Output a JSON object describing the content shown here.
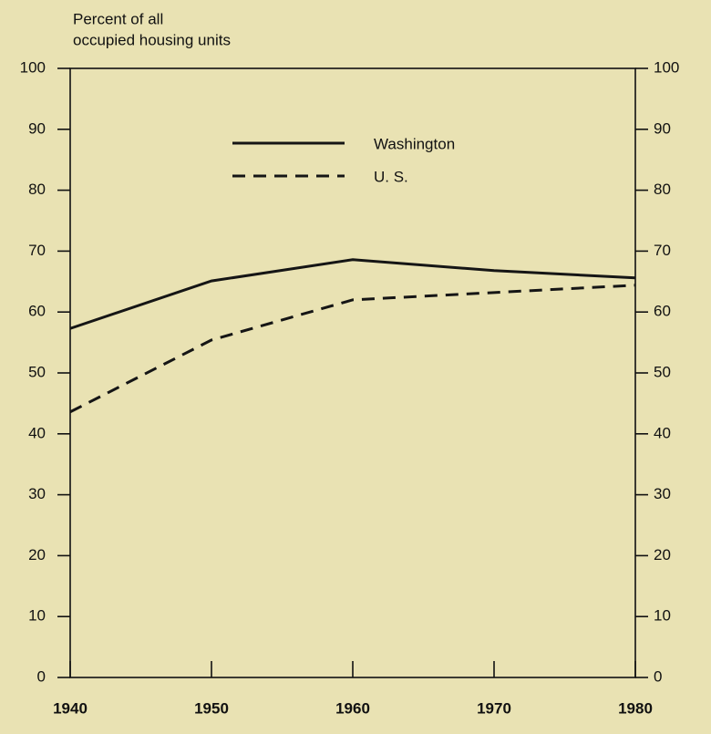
{
  "chart_data": {
    "type": "line",
    "ylabel": [
      "Percent of all",
      "occupied housing units"
    ],
    "x": [
      1940,
      1950,
      1960,
      1970,
      1980
    ],
    "xlim": [
      1940,
      1980
    ],
    "xticks": [
      1940,
      1950,
      1960,
      1970,
      1980
    ],
    "ylim": [
      0,
      100
    ],
    "yticks": [
      0,
      10,
      20,
      30,
      40,
      50,
      60,
      70,
      80,
      90,
      100
    ],
    "y2lim": [
      0,
      100
    ],
    "y2ticks": [
      0,
      10,
      20,
      30,
      40,
      50,
      60,
      70,
      80,
      90,
      100
    ],
    "legend": "top",
    "series": [
      {
        "name": "Washington",
        "color": "#151515",
        "dash": false,
        "values": [
          57.3,
          65.1,
          68.6,
          66.8,
          65.6
        ]
      },
      {
        "name": "U. S.",
        "color": "#151515",
        "dash": true,
        "values": [
          43.6,
          55.4,
          62.0,
          63.2,
          64.4
        ]
      }
    ]
  }
}
